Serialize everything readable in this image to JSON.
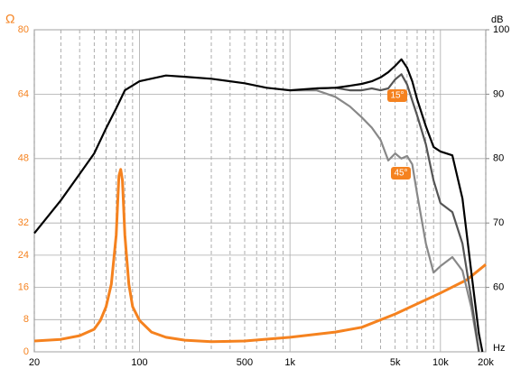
{
  "chart_data": {
    "type": "line",
    "y_unit": "Ω",
    "y2_unit": "dB",
    "x_unit": "Hz",
    "xlim": [
      20,
      20000
    ],
    "xscale": "log",
    "xticks": [
      20,
      100,
      500,
      {
        "value": 1000,
        "label": "1k"
      },
      {
        "value": 5000,
        "label": "5k"
      },
      {
        "value": 10000,
        "label": "10k"
      },
      {
        "value": 20000,
        "label": "20k"
      }
    ],
    "xgrid_minor": [
      30,
      40,
      50,
      60,
      70,
      80,
      90,
      200,
      300,
      400,
      600,
      700,
      800,
      900,
      2000,
      3000,
      4000,
      6000,
      7000,
      8000,
      9000
    ],
    "ylim": [
      0,
      80
    ],
    "yticks": [
      0,
      8,
      16,
      24,
      32,
      48,
      64,
      80
    ],
    "y2lim": [
      50,
      100
    ],
    "y2ticks": [
      60,
      70,
      80,
      90,
      100
    ],
    "grid": true,
    "series": [
      {
        "color": "#000000",
        "axis": "y2",
        "x": [
          20,
          30,
          40,
          50,
          60,
          70,
          80,
          100,
          150,
          200,
          300,
          500,
          700,
          1000,
          1500,
          2000,
          2500,
          3000,
          3500,
          4000,
          4500,
          5000,
          5500,
          6000,
          6500,
          7000,
          8000,
          9000,
          10000,
          12000,
          14000,
          16000,
          18000,
          19000
        ],
        "values": [
          68.4,
          73.5,
          77.6,
          80.8,
          84.7,
          87.8,
          90.6,
          92.0,
          92.9,
          92.7,
          92.4,
          91.7,
          91.0,
          90.6,
          90.9,
          91.0,
          91.3,
          91.6,
          92.0,
          92.6,
          93.4,
          94.4,
          95.4,
          94.1,
          92.0,
          89.2,
          85.0,
          81.8,
          81.1,
          80.5,
          73.8,
          62.6,
          52.8,
          50
        ]
      },
      {
        "name": "15°",
        "color": "#555555",
        "axis": "y2",
        "x": [
          1500,
          2000,
          2500,
          3000,
          3500,
          4000,
          4500,
          5000,
          5500,
          6000,
          6500,
          7000,
          8000,
          9000,
          10000,
          12000,
          14000,
          16000,
          18000
        ],
        "values": [
          90.9,
          91.0,
          90.6,
          90.6,
          90.9,
          90.6,
          90.9,
          92.3,
          93.1,
          91.5,
          89.0,
          86.7,
          82.2,
          76.6,
          73.1,
          71.7,
          66.8,
          58.4,
          50
        ]
      },
      {
        "name": "45°",
        "color": "#888888",
        "axis": "y2",
        "x": [
          1000,
          1500,
          2000,
          2500,
          3000,
          3500,
          4000,
          4500,
          5000,
          5500,
          6000,
          6500,
          7000,
          8000,
          9000,
          10000,
          12000,
          14000,
          16000,
          18000
        ],
        "values": [
          90.6,
          90.6,
          89.6,
          88.1,
          86.4,
          84.8,
          82.9,
          79.7,
          80.8,
          80.0,
          80.4,
          79.1,
          74.5,
          66.8,
          62.3,
          63.3,
          64.7,
          62.6,
          57.0,
          50
        ]
      },
      {
        "color": "#f5821f",
        "axis": "y",
        "x": [
          20,
          30,
          40,
          50,
          55,
          60,
          65,
          70,
          73,
          75,
          77,
          80,
          85,
          90,
          100,
          120,
          150,
          200,
          300,
          500,
          1000,
          2000,
          3000,
          5000,
          10000,
          15000,
          20000
        ],
        "values": [
          2.7,
          3.1,
          4.0,
          5.6,
          7.8,
          11.2,
          16.8,
          29.0,
          43.7,
          45.3,
          42.6,
          29.0,
          16.8,
          11.2,
          7.8,
          4.9,
          3.6,
          2.9,
          2.5,
          2.7,
          3.6,
          4.9,
          6.1,
          9.4,
          14.6,
          17.9,
          21.7
        ]
      }
    ]
  }
}
